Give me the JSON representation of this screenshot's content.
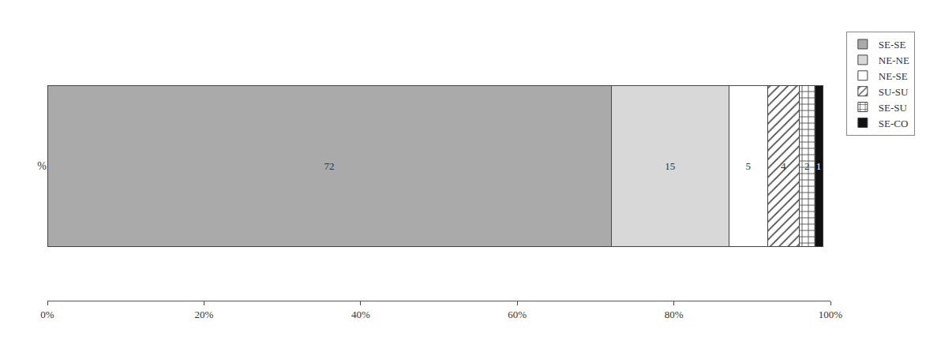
{
  "chart_data": {
    "type": "bar",
    "orientation": "horizontal",
    "stacked": true,
    "categories": [
      "%"
    ],
    "series": [
      {
        "name": "SE-SE",
        "color": "#aaaaaa",
        "values": [
          72
        ]
      },
      {
        "name": "NE-NE",
        "color": "#d8d8d8",
        "values": [
          15
        ]
      },
      {
        "name": "NE-SE",
        "color": "#ffffff",
        "values": [
          5
        ]
      },
      {
        "name": "SU-SU",
        "color": "#ffffff",
        "values": [
          4
        ]
      },
      {
        "name": "SE-SU",
        "color": "#ffffff",
        "values": [
          2
        ]
      },
      {
        "name": "SE-CO",
        "color": "#111111",
        "values": [
          1
        ]
      }
    ],
    "xlim": [
      0,
      100
    ],
    "xticks": [
      {
        "value": 0,
        "label": "0%"
      },
      {
        "value": 20,
        "label": "20%"
      },
      {
        "value": 40,
        "label": "40%"
      },
      {
        "value": 60,
        "label": "60%"
      },
      {
        "value": 80,
        "label": "80%"
      },
      {
        "value": 100,
        "label": "100%"
      }
    ],
    "data_labels": true,
    "grid": false,
    "legend": "upper right"
  }
}
